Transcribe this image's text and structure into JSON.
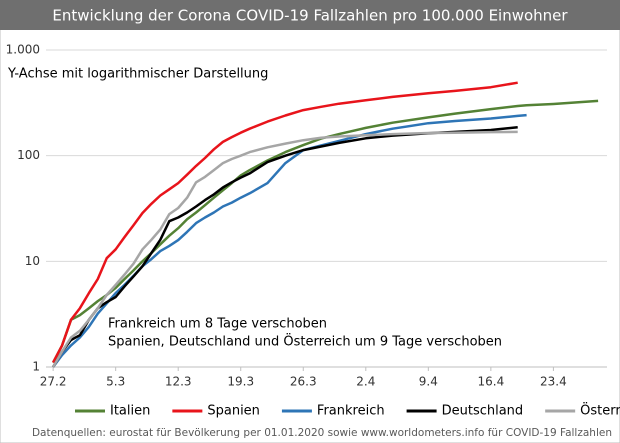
{
  "chart_data": {
    "type": "line",
    "title": "Entwicklung der Corona COVID-19 Fallzahlen pro 100.000 Einwohner",
    "annotations": [
      "Y-Achse mit logarithmischer Darstellung",
      "Frankreich um 8 Tage verschoben",
      "Spanien, Deutschland und Österreich um 9 Tage verschoben"
    ],
    "source": "Datenquellen: eurostat für Bevölkerung per 01.01.2020 sowie www.worldometers.info für COVID-19 Fallzahlen",
    "x": [
      0,
      1,
      2,
      3,
      4,
      5,
      6,
      7,
      8,
      9,
      10,
      11,
      12,
      13,
      14,
      15,
      16,
      17,
      18,
      19,
      20,
      21,
      22,
      24,
      26,
      28,
      30,
      32,
      35,
      38,
      42,
      45,
      49,
      52,
      53,
      56,
      61
    ],
    "xlim": [
      -0.8,
      62
    ],
    "xticks": [
      {
        "value": 0,
        "label": "27.2"
      },
      {
        "value": 7,
        "label": "5.3"
      },
      {
        "value": 14,
        "label": "12.3"
      },
      {
        "value": 21,
        "label": "19.3"
      },
      {
        "value": 28,
        "label": "26.3"
      },
      {
        "value": 35,
        "label": "2.4"
      },
      {
        "value": 42,
        "label": "9.4"
      },
      {
        "value": 49,
        "label": "16.4"
      },
      {
        "value": 56,
        "label": "23.4"
      }
    ],
    "ylim": [
      1,
      1000
    ],
    "log_y": true,
    "grid": true,
    "yticks": [
      1,
      10,
      100,
      {
        "value": 1000,
        "label": "1.000"
      }
    ],
    "legend": "bottom",
    "series": [
      {
        "name": "Italien",
        "color": "#548235",
        "values": [
          1.1,
          1.6,
          2.8,
          3.1,
          3.6,
          4.2,
          4.8,
          5.6,
          6.8,
          8.2,
          10,
          12,
          14.5,
          17.5,
          20.6,
          25,
          29,
          34,
          40,
          47,
          55,
          65,
          73,
          90,
          108,
          126,
          145,
          160,
          183,
          205,
          230,
          250,
          276,
          295,
          300,
          308,
          330
        ]
      },
      {
        "name": "Spanien",
        "color": "#e8141b",
        "values": [
          1.1,
          1.6,
          2.8,
          3.6,
          5.0,
          6.8,
          10.7,
          13,
          17,
          22,
          28.7,
          35,
          42,
          48,
          55,
          66,
          80,
          95,
          115,
          135,
          150,
          165,
          180,
          210,
          240,
          270,
          290,
          310,
          335,
          360,
          390,
          410,
          445,
          490,
          null,
          null,
          null
        ]
      },
      {
        "name": "Frankreich",
        "color": "#2e75b6",
        "values": [
          1.0,
          1.3,
          1.6,
          1.9,
          2.4,
          3.2,
          4.0,
          5.0,
          6.0,
          7.3,
          9,
          10.5,
          12.5,
          14,
          15.9,
          19,
          23,
          26,
          29,
          33,
          36,
          40,
          44,
          55,
          85,
          113,
          125,
          138,
          160,
          180,
          203,
          213,
          225,
          238,
          242,
          null,
          null
        ]
      },
      {
        "name": "Deutschland",
        "color": "#000000",
        "values": [
          1.0,
          1.4,
          1.8,
          2.0,
          2.8,
          3.6,
          4.1,
          4.6,
          5.8,
          7.2,
          9,
          12,
          16,
          24,
          26,
          29,
          33,
          38,
          43,
          50,
          56,
          62,
          68,
          87,
          100,
          113,
          122,
          132,
          146,
          155,
          163,
          168,
          175,
          186,
          null,
          null,
          null
        ]
      },
      {
        "name": "Österreich",
        "color": "#a6a6a6",
        "values": [
          1.0,
          1.4,
          1.9,
          2.2,
          2.8,
          3.6,
          4.8,
          6,
          7.5,
          9.5,
          13,
          16,
          20,
          28,
          32,
          40,
          56,
          63,
          73,
          85,
          93,
          100,
          108,
          120,
          130,
          140,
          148,
          152,
          156,
          160,
          164,
          165,
          167,
          168,
          null,
          null,
          null
        ]
      }
    ]
  }
}
